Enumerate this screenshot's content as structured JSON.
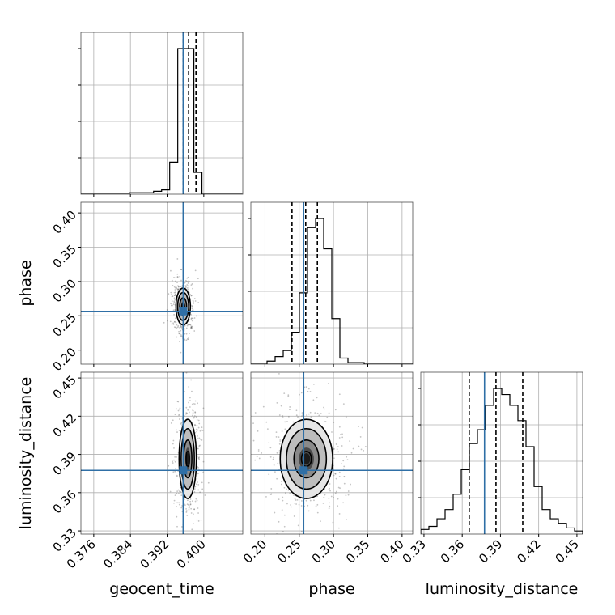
{
  "colors": {
    "truth": "#2f6fa6",
    "hist": "#000000",
    "grid": "#b0b0b0",
    "points": "#555555"
  },
  "chart_data": {
    "type": "corner",
    "parameters": [
      "geocent_time",
      "phase",
      "luminosity_distance"
    ],
    "truths": [
      0.3955,
      0.2565,
      0.3775
    ],
    "ranges": [
      [
        0.3732,
        0.4085
      ],
      [
        0.1795,
        0.4155
      ],
      [
        0.3275,
        0.4545
      ]
    ],
    "ticks": [
      [
        0.376,
        0.384,
        0.392,
        0.4
      ],
      [
        0.2,
        0.25,
        0.3,
        0.35,
        0.4
      ],
      [
        0.33,
        0.36,
        0.39,
        0.42,
        0.45
      ]
    ],
    "tick_labels": [
      [
        "0.376",
        "0.384",
        "0.392",
        "0.400"
      ],
      [
        "0.20",
        "0.25",
        "0.30",
        "0.35",
        "0.40"
      ],
      [
        "0.33",
        "0.36",
        "0.39",
        "0.42",
        "0.45"
      ]
    ],
    "histograms": [
      {
        "parameter": "geocent_time",
        "bin_start": 0.3732,
        "bin_width": 0.00176,
        "counts": [
          0,
          0,
          0,
          0,
          0,
          0,
          0.01,
          0.01,
          0.01,
          0.02,
          0.03,
          0.22,
          1.0,
          1.0,
          0.15,
          0,
          0,
          0,
          0,
          0
        ],
        "quantiles": [
          0.3955,
          0.3967,
          0.3983
        ]
      },
      {
        "parameter": "phase",
        "bin_start": 0.1795,
        "bin_width": 0.0118,
        "counts": [
          0,
          0,
          0.02,
          0.05,
          0.09,
          0.21,
          0.47,
          0.9,
          0.96,
          0.76,
          0.3,
          0.04,
          0.01,
          0.01,
          0,
          0,
          0,
          0,
          0,
          0
        ],
        "quantiles": [
          0.2395,
          0.2595,
          0.2765
        ]
      },
      {
        "parameter": "luminosity_distance",
        "bin_start": 0.3275,
        "bin_width": 0.00635,
        "counts": [
          0.03,
          0.05,
          0.1,
          0.16,
          0.26,
          0.42,
          0.59,
          0.68,
          0.84,
          0.95,
          0.91,
          0.84,
          0.74,
          0.57,
          0.31,
          0.16,
          0.1,
          0.07,
          0.04,
          0.02
        ],
        "quantiles": [
          0.3655,
          0.3865,
          0.4075
        ]
      }
    ],
    "joint": [
      {
        "x": "geocent_time",
        "y": "phase",
        "center": [
          0.3955,
          0.2635
        ],
        "sd": [
          0.00075,
          0.0128
        ],
        "contour_levels": [
          0.4,
          1.0,
          1.6,
          2.1
        ]
      },
      {
        "x": "geocent_time",
        "y": "luminosity_distance",
        "center": [
          0.3965,
          0.3865
        ],
        "sd": [
          0.0009,
          0.0148
        ],
        "contour_levels": [
          0.4,
          1.0,
          1.6,
          2.1
        ]
      },
      {
        "x": "phase",
        "y": "luminosity_distance",
        "center": [
          0.2605,
          0.3865
        ],
        "sd": [
          0.0182,
          0.0148
        ],
        "contour_levels": [
          0.4,
          1.0,
          1.6,
          2.1
        ]
      }
    ],
    "grid": true
  }
}
